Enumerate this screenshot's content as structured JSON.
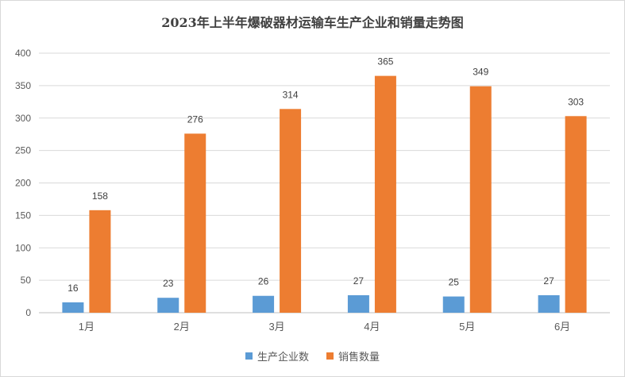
{
  "chart_data": {
    "type": "bar",
    "title": "2023年上半年爆破器材运输车生产企业和销量走势图",
    "categories": [
      "1月",
      "2月",
      "3月",
      "4月",
      "5月",
      "6月"
    ],
    "series": [
      {
        "name": "生产企业数",
        "values": [
          16,
          23,
          26,
          27,
          25,
          27
        ],
        "color": "#5b9bd5"
      },
      {
        "name": "销售数量",
        "values": [
          158,
          276,
          314,
          365,
          349,
          303
        ],
        "color": "#ed7d31"
      }
    ],
    "ylim": [
      0,
      400
    ],
    "yticks": [
      0,
      50,
      100,
      150,
      200,
      250,
      300,
      350,
      400
    ],
    "grid": true,
    "legend_position": "bottom"
  }
}
